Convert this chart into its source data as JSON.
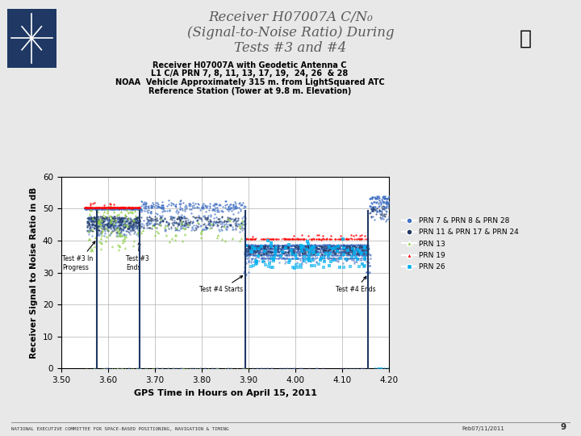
{
  "title_line1": "Receiver H07007A C/N₀",
  "title_line2": "(Signal-to-Noise Ratio) During",
  "title_line3": "Tests #3 and #4",
  "subtitle_lines": [
    "Receiver H07007A with Geodetic Antenna C",
    "L1 C/A PRN 7, 8, 11, 13, 17, 19,  24, 26  & 28",
    "NOAA  Vehicle Approximately 315 m. from LightSquared ATC",
    "Reference Station (Tower at 9.8 m. Elevation)"
  ],
  "xlabel": "GPS Time in Hours on April 15, 2011",
  "ylabel": "Receiver Signal to Noise Ratio in dB",
  "xlim": [
    3.5,
    4.2
  ],
  "ylim": [
    0,
    60
  ],
  "xticks": [
    3.5,
    3.6,
    3.7,
    3.8,
    3.9,
    4.0,
    4.1,
    4.2
  ],
  "yticks": [
    0,
    10,
    20,
    30,
    40,
    50,
    60
  ],
  "bg_color": "#e8e8e8",
  "plot_bg": "#ffffff",
  "footer": "NATIONAL EXECUTIVE COMMITTEE FOR SPACE-BASED POSITIONING, NAVIGATION & TIMING",
  "footer_right": "Feb07/11/2011",
  "footer_page": "9",
  "blue": "#4472c4",
  "gray": "#7f7f7f",
  "green": "#92d050",
  "red": "#ff0000",
  "lt_blue": "#00b0f0",
  "vlines": [
    3.577,
    3.668,
    3.893,
    4.155
  ]
}
